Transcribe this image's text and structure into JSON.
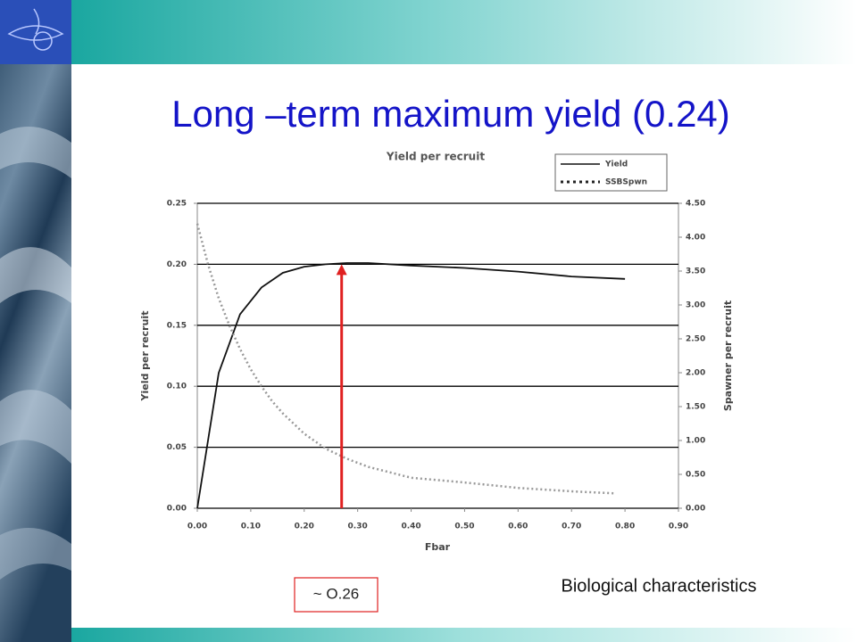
{
  "title": "Long –term maximum yield (0.24)",
  "caption": "Biological characteristics",
  "chart_data": {
    "type": "line",
    "title": "Yield per recruit",
    "x_label": "Fbar",
    "y_label": "Yield per recruit",
    "y2_label": "Spawner per recruit",
    "xlim": [
      0,
      0.9
    ],
    "xticks": [
      {
        "value": 0,
        "label": "0.00"
      },
      {
        "value": 0.1,
        "label": "0.10"
      },
      {
        "value": 0.2,
        "label": "0.20"
      },
      {
        "value": 0.3,
        "label": "0.30"
      },
      {
        "value": 0.4,
        "label": "0.40"
      },
      {
        "value": 0.5,
        "label": "0.50"
      },
      {
        "value": 0.6,
        "label": "0.60"
      },
      {
        "value": 0.7,
        "label": "0.70"
      },
      {
        "value": 0.8,
        "label": "0.80"
      },
      {
        "value": 0.9,
        "label": "0.90"
      }
    ],
    "ylim": [
      0,
      0.25
    ],
    "yticks": [
      {
        "value": 0,
        "label": "0.00"
      },
      {
        "value": 0.05,
        "label": "0.05"
      },
      {
        "value": 0.1,
        "label": "0.10"
      },
      {
        "value": 0.15,
        "label": "0.15"
      },
      {
        "value": 0.2,
        "label": "0.20"
      },
      {
        "value": 0.25,
        "label": "0.25"
      }
    ],
    "y2lim": [
      0,
      4.5
    ],
    "y2ticks": [
      {
        "value": 0,
        "label": "0.00"
      },
      {
        "value": 0.5,
        "label": "0.50"
      },
      {
        "value": 1,
        "label": "1.00"
      },
      {
        "value": 1.5,
        "label": "1.50"
      },
      {
        "value": 2,
        "label": "2.00"
      },
      {
        "value": 2.5,
        "label": "2.50"
      },
      {
        "value": 3,
        "label": "3.00"
      },
      {
        "value": 3.5,
        "label": "3.50"
      },
      {
        "value": 4,
        "label": "4.00"
      },
      {
        "value": 4.5,
        "label": "4.50"
      }
    ],
    "grid": true,
    "legend": "upper right",
    "series": [
      {
        "name": "Yield",
        "color": "#111111",
        "style": "solid",
        "x": [
          0,
          0.04,
          0.08,
          0.12,
          0.16,
          0.2,
          0.24,
          0.28,
          0.32,
          0.4,
          0.5,
          0.6,
          0.7,
          0.8
        ],
        "values": [
          0,
          0.111,
          0.159,
          0.181,
          0.193,
          0.198,
          0.2,
          0.201,
          0.201,
          0.199,
          0.197,
          0.194,
          0.19,
          0.188
        ]
      },
      {
        "name": "SSBSpwn",
        "color": "#999999",
        "style": "dotted",
        "axis": "y2",
        "x": [
          0,
          0.02,
          0.04,
          0.06,
          0.08,
          0.1,
          0.12,
          0.14,
          0.16,
          0.2,
          0.24,
          0.28,
          0.32,
          0.4,
          0.5,
          0.6,
          0.7,
          0.78
        ],
        "values": [
          4.2,
          3.6,
          3.1,
          2.7,
          2.35,
          2.05,
          1.8,
          1.58,
          1.4,
          1.1,
          0.88,
          0.73,
          0.61,
          0.45,
          0.38,
          0.3,
          0.25,
          0.22
        ]
      }
    ],
    "annotations": [
      {
        "label": "~ O.26",
        "x": 0.27,
        "y": 0.2,
        "color": "#e02020"
      }
    ]
  }
}
